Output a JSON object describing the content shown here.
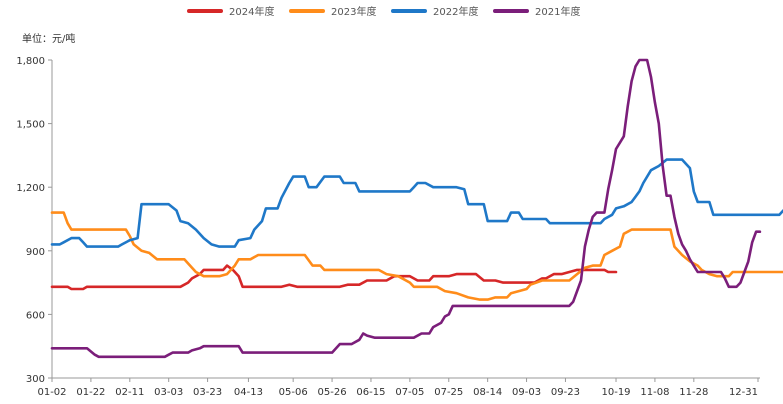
{
  "chart_data": {
    "type": "line",
    "unit_label": "单位：元/吨",
    "ylim": [
      300,
      1800
    ],
    "y_ticks": [
      "300",
      "600",
      "900",
      "1,200",
      "1,500",
      "1,800"
    ],
    "y_tick_values": [
      300,
      600,
      900,
      1200,
      1500,
      1800
    ],
    "x_ticks": [
      "01-02",
      "01-22",
      "02-11",
      "03-03",
      "03-23",
      "04-13",
      "05-06",
      "05-26",
      "06-15",
      "07-05",
      "07-25",
      "08-14",
      "09-03",
      "09-23",
      "10-19",
      "11-08",
      "11-28",
      "12-31"
    ],
    "x_tick_days": [
      2,
      22,
      42,
      62,
      82,
      103,
      126,
      146,
      166,
      186,
      206,
      226,
      246,
      266,
      292,
      312,
      332,
      365
    ],
    "x_range_days": [
      2,
      365
    ],
    "grid": false,
    "legend_position": "top",
    "series": [
      {
        "name": "2024年度",
        "color": "#d62728",
        "points": [
          [
            2,
            730
          ],
          [
            10,
            730
          ],
          [
            12,
            720
          ],
          [
            18,
            720
          ],
          [
            20,
            730
          ],
          [
            60,
            730
          ],
          [
            68,
            730
          ],
          [
            72,
            750
          ],
          [
            74,
            770
          ],
          [
            78,
            790
          ],
          [
            80,
            810
          ],
          [
            90,
            810
          ],
          [
            92,
            830
          ],
          [
            95,
            810
          ],
          [
            98,
            780
          ],
          [
            100,
            730
          ],
          [
            120,
            730
          ],
          [
            124,
            740
          ],
          [
            128,
            730
          ],
          [
            150,
            730
          ],
          [
            154,
            740
          ],
          [
            160,
            740
          ],
          [
            164,
            760
          ],
          [
            174,
            760
          ],
          [
            178,
            780
          ],
          [
            186,
            780
          ],
          [
            190,
            760
          ],
          [
            196,
            760
          ],
          [
            198,
            780
          ],
          [
            206,
            780
          ],
          [
            210,
            790
          ],
          [
            220,
            790
          ],
          [
            224,
            760
          ],
          [
            226,
            760
          ],
          [
            230,
            760
          ],
          [
            234,
            750
          ],
          [
            250,
            750
          ],
          [
            254,
            770
          ],
          [
            256,
            770
          ],
          [
            260,
            790
          ],
          [
            264,
            790
          ],
          [
            268,
            800
          ],
          [
            272,
            810
          ],
          [
            286,
            810
          ],
          [
            288,
            800
          ],
          [
            292,
            800
          ]
        ]
      },
      {
        "name": "2023年度",
        "color": "#ff8c1a",
        "points": [
          [
            2,
            1080
          ],
          [
            8,
            1080
          ],
          [
            10,
            1030
          ],
          [
            12,
            1000
          ],
          [
            40,
            1000
          ],
          [
            42,
            970
          ],
          [
            44,
            930
          ],
          [
            48,
            900
          ],
          [
            52,
            890
          ],
          [
            56,
            860
          ],
          [
            70,
            860
          ],
          [
            74,
            820
          ],
          [
            76,
            800
          ],
          [
            80,
            780
          ],
          [
            88,
            780
          ],
          [
            92,
            790
          ],
          [
            96,
            830
          ],
          [
            98,
            860
          ],
          [
            104,
            860
          ],
          [
            108,
            880
          ],
          [
            132,
            880
          ],
          [
            136,
            830
          ],
          [
            140,
            830
          ],
          [
            142,
            810
          ],
          [
            170,
            810
          ],
          [
            174,
            790
          ],
          [
            180,
            780
          ],
          [
            186,
            750
          ],
          [
            188,
            730
          ],
          [
            200,
            730
          ],
          [
            204,
            710
          ],
          [
            210,
            700
          ],
          [
            216,
            680
          ],
          [
            222,
            670
          ],
          [
            226,
            670
          ],
          [
            230,
            680
          ],
          [
            236,
            680
          ],
          [
            238,
            700
          ],
          [
            242,
            710
          ],
          [
            246,
            720
          ],
          [
            248,
            740
          ],
          [
            254,
            760
          ],
          [
            268,
            760
          ],
          [
            272,
            790
          ],
          [
            276,
            820
          ],
          [
            280,
            830
          ],
          [
            284,
            830
          ],
          [
            286,
            880
          ],
          [
            290,
            900
          ],
          [
            294,
            920
          ],
          [
            296,
            980
          ],
          [
            300,
            1000
          ],
          [
            320,
            1000
          ],
          [
            322,
            920
          ],
          [
            326,
            880
          ],
          [
            330,
            850
          ],
          [
            334,
            830
          ],
          [
            336,
            810
          ],
          [
            340,
            790
          ],
          [
            344,
            780
          ],
          [
            350,
            780
          ],
          [
            352,
            800
          ],
          [
            380,
            800
          ],
          [
            382,
            780
          ],
          [
            400,
            770
          ],
          [
            410,
            770
          ],
          [
            412,
            720
          ],
          [
            414,
            730
          ],
          [
            418,
            730
          ]
        ]
      },
      {
        "name": "2022年度",
        "color": "#1f78c8",
        "points": [
          [
            2,
            930
          ],
          [
            6,
            930
          ],
          [
            8,
            940
          ],
          [
            12,
            960
          ],
          [
            16,
            960
          ],
          [
            18,
            940
          ],
          [
            20,
            920
          ],
          [
            36,
            920
          ],
          [
            38,
            930
          ],
          [
            42,
            950
          ],
          [
            46,
            960
          ],
          [
            48,
            1120
          ],
          [
            62,
            1120
          ],
          [
            66,
            1090
          ],
          [
            68,
            1040
          ],
          [
            72,
            1030
          ],
          [
            76,
            1000
          ],
          [
            80,
            960
          ],
          [
            84,
            930
          ],
          [
            88,
            920
          ],
          [
            96,
            920
          ],
          [
            98,
            950
          ],
          [
            104,
            960
          ],
          [
            106,
            1000
          ],
          [
            110,
            1040
          ],
          [
            112,
            1100
          ],
          [
            118,
            1100
          ],
          [
            120,
            1150
          ],
          [
            124,
            1220
          ],
          [
            126,
            1250
          ],
          [
            132,
            1250
          ],
          [
            134,
            1200
          ],
          [
            138,
            1200
          ],
          [
            142,
            1250
          ],
          [
            150,
            1250
          ],
          [
            152,
            1220
          ],
          [
            158,
            1220
          ],
          [
            160,
            1180
          ],
          [
            186,
            1180
          ],
          [
            188,
            1200
          ],
          [
            190,
            1220
          ],
          [
            194,
            1220
          ],
          [
            198,
            1200
          ],
          [
            210,
            1200
          ],
          [
            214,
            1190
          ],
          [
            216,
            1120
          ],
          [
            224,
            1120
          ],
          [
            226,
            1040
          ],
          [
            236,
            1040
          ],
          [
            238,
            1080
          ],
          [
            242,
            1080
          ],
          [
            244,
            1050
          ],
          [
            256,
            1050
          ],
          [
            258,
            1030
          ],
          [
            284,
            1030
          ],
          [
            286,
            1050
          ],
          [
            290,
            1070
          ],
          [
            292,
            1100
          ],
          [
            296,
            1110
          ],
          [
            300,
            1130
          ],
          [
            304,
            1180
          ],
          [
            306,
            1220
          ],
          [
            310,
            1280
          ],
          [
            314,
            1300
          ],
          [
            318,
            1330
          ],
          [
            326,
            1330
          ],
          [
            330,
            1290
          ],
          [
            332,
            1180
          ],
          [
            334,
            1130
          ],
          [
            340,
            1130
          ],
          [
            342,
            1070
          ],
          [
            376,
            1070
          ],
          [
            378,
            1090
          ],
          [
            380,
            1100
          ],
          [
            382,
            1120
          ],
          [
            390,
            1120
          ],
          [
            392,
            1150
          ],
          [
            398,
            1140
          ],
          [
            400,
            1110
          ],
          [
            404,
            1110
          ]
        ]
      },
      {
        "name": "2021年度",
        "color": "#7b1e7a",
        "points": [
          [
            2,
            440
          ],
          [
            20,
            440
          ],
          [
            24,
            410
          ],
          [
            26,
            400
          ],
          [
            60,
            400
          ],
          [
            62,
            410
          ],
          [
            64,
            420
          ],
          [
            72,
            420
          ],
          [
            74,
            430
          ],
          [
            78,
            440
          ],
          [
            80,
            450
          ],
          [
            98,
            450
          ],
          [
            100,
            420
          ],
          [
            146,
            420
          ],
          [
            150,
            460
          ],
          [
            156,
            460
          ],
          [
            160,
            480
          ],
          [
            162,
            510
          ],
          [
            164,
            500
          ],
          [
            168,
            490
          ],
          [
            184,
            490
          ],
          [
            188,
            490
          ],
          [
            192,
            510
          ],
          [
            196,
            510
          ],
          [
            198,
            540
          ],
          [
            202,
            560
          ],
          [
            204,
            590
          ],
          [
            206,
            600
          ],
          [
            208,
            640
          ],
          [
            268,
            640
          ],
          [
            270,
            660
          ],
          [
            274,
            760
          ],
          [
            276,
            920
          ],
          [
            278,
            1000
          ],
          [
            280,
            1060
          ],
          [
            282,
            1080
          ],
          [
            284,
            1080
          ],
          [
            286,
            1080
          ],
          [
            288,
            1190
          ],
          [
            290,
            1280
          ],
          [
            292,
            1380
          ],
          [
            294,
            1410
          ],
          [
            296,
            1440
          ],
          [
            298,
            1580
          ],
          [
            300,
            1700
          ],
          [
            302,
            1770
          ],
          [
            304,
            1800
          ],
          [
            308,
            1800
          ],
          [
            310,
            1720
          ],
          [
            312,
            1600
          ],
          [
            314,
            1500
          ],
          [
            316,
            1300
          ],
          [
            318,
            1160
          ],
          [
            320,
            1160
          ],
          [
            322,
            1060
          ],
          [
            324,
            980
          ],
          [
            326,
            930
          ],
          [
            328,
            900
          ],
          [
            330,
            860
          ],
          [
            334,
            800
          ],
          [
            346,
            800
          ],
          [
            348,
            770
          ],
          [
            350,
            730
          ],
          [
            354,
            730
          ],
          [
            356,
            750
          ],
          [
            358,
            800
          ],
          [
            360,
            850
          ],
          [
            362,
            940
          ],
          [
            364,
            990
          ],
          [
            366,
            990
          ]
        ]
      }
    ]
  }
}
